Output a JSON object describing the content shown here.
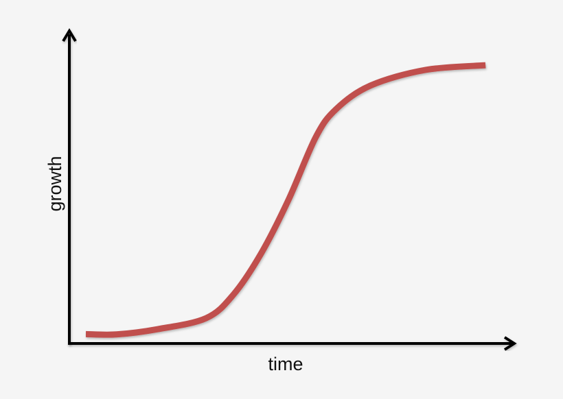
{
  "chart_data": {
    "type": "line",
    "title": "",
    "xlabel": "time",
    "ylabel": "growth",
    "xlim": [
      0,
      100
    ],
    "ylim": [
      0,
      100
    ],
    "grid": false,
    "ticks": false,
    "series": [
      {
        "color": "#c0504d",
        "x": [
          3.7,
          10.6,
          19.9,
          30.7,
          36.8,
          43.0,
          49.2,
          55.3,
          59.9,
          67.6,
          79.9,
          93.4
        ],
        "y": [
          3.0,
          2.9,
          4.6,
          8.1,
          15.6,
          28.7,
          46.0,
          66.0,
          75.0,
          82.5,
          87.5,
          89.0
        ]
      }
    ],
    "axis_color": "#000000",
    "background": "#f5f5f5"
  }
}
